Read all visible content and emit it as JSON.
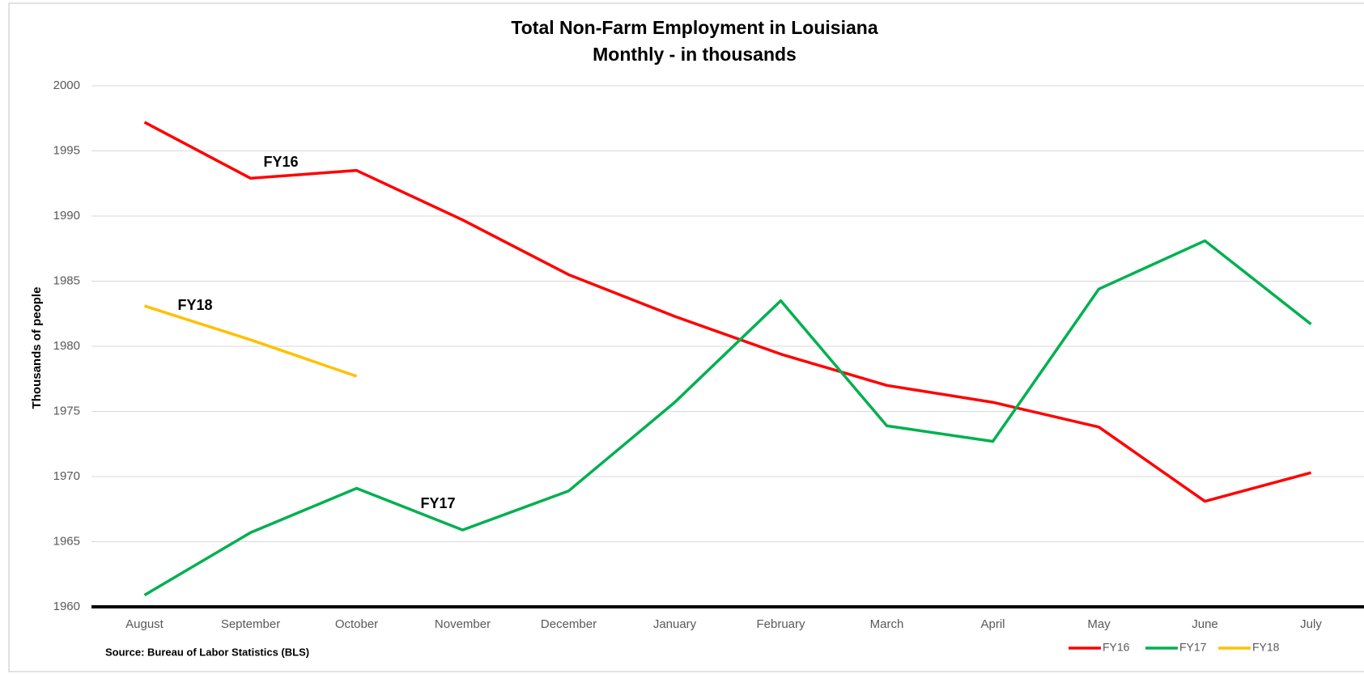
{
  "chart_data": {
    "type": "line",
    "title": "Total Non-Farm Employment in Louisiana",
    "subtitle": "Monthly - in thousands",
    "y_label": "Thousands of people",
    "source": "Source: Bureau of Labor Statistics (BLS)",
    "categories": [
      "August",
      "September",
      "October",
      "November",
      "December",
      "January",
      "February",
      "March",
      "April",
      "May",
      "June",
      "July"
    ],
    "series": [
      {
        "name": "FY16",
        "color": "#ff0000",
        "values": [
          1997.2,
          1992.9,
          1993.5,
          1989.7,
          1985.5,
          1982.3,
          1979.4,
          1977.0,
          1975.7,
          1973.8,
          1968.1,
          1970.3
        ]
      },
      {
        "name": "FY17",
        "color": "#00b050",
        "values": [
          1960.9,
          1965.7,
          1969.1,
          1965.9,
          1968.9,
          1975.7,
          1983.5,
          1973.9,
          1972.7,
          1984.4,
          1988.1,
          1981.7
        ]
      },
      {
        "name": "FY18",
        "color": "#ffc000",
        "values": [
          1983.1,
          1980.5,
          1977.7,
          null,
          null,
          null,
          null,
          null,
          null,
          null,
          null,
          null
        ]
      }
    ],
    "annotations": [
      "FY16",
      "FY18",
      "FY17"
    ],
    "ylim": [
      1960,
      2000
    ],
    "yticks": [
      1960,
      1965,
      1970,
      1975,
      1980,
      1985,
      1990,
      1995,
      2000
    ],
    "grid": true,
    "legend": "bottom-right"
  }
}
